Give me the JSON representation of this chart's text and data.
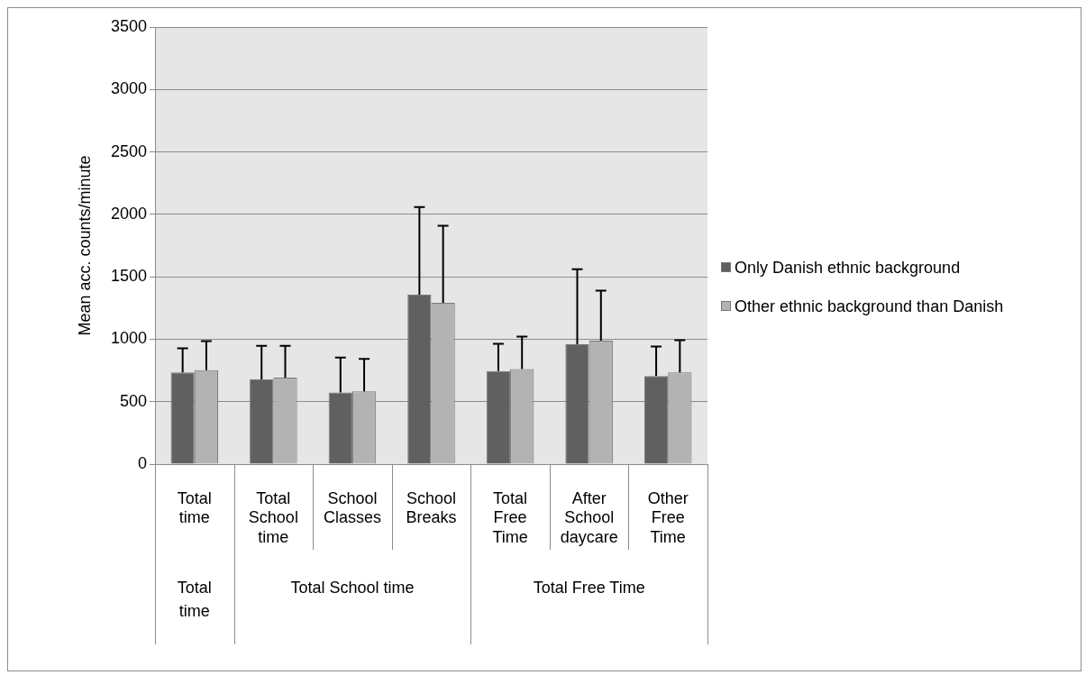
{
  "chart_data": {
    "type": "bar",
    "categories": [
      "Total time",
      "Total School time",
      "School Classes",
      "School Breaks",
      "Total Free Time",
      "After School daycare",
      "Other Free Time"
    ],
    "series": [
      {
        "name": "Only Danish ethnic background",
        "color": "#606060",
        "values": [
          735,
          678,
          573,
          1357,
          745,
          960,
          706
        ],
        "errors": [
          193,
          270,
          280,
          701,
          218,
          600,
          235
        ]
      },
      {
        "name": "Other ethnic background than Danish",
        "color": "#b3b3b3",
        "values": [
          752,
          693,
          583,
          1291,
          761,
          989,
          735
        ],
        "errors": [
          233,
          255,
          259,
          617,
          261,
          400,
          257
        ]
      }
    ],
    "ylabel": "Mean acc. counts/minute",
    "ylim": [
      0,
      3500
    ],
    "yticks": [
      0,
      500,
      1000,
      1500,
      2000,
      2500,
      3000,
      3500
    ],
    "grid": "y",
    "legend": "right",
    "annotations": [
      "Total time",
      "Total School time",
      "Total Free Time"
    ]
  }
}
